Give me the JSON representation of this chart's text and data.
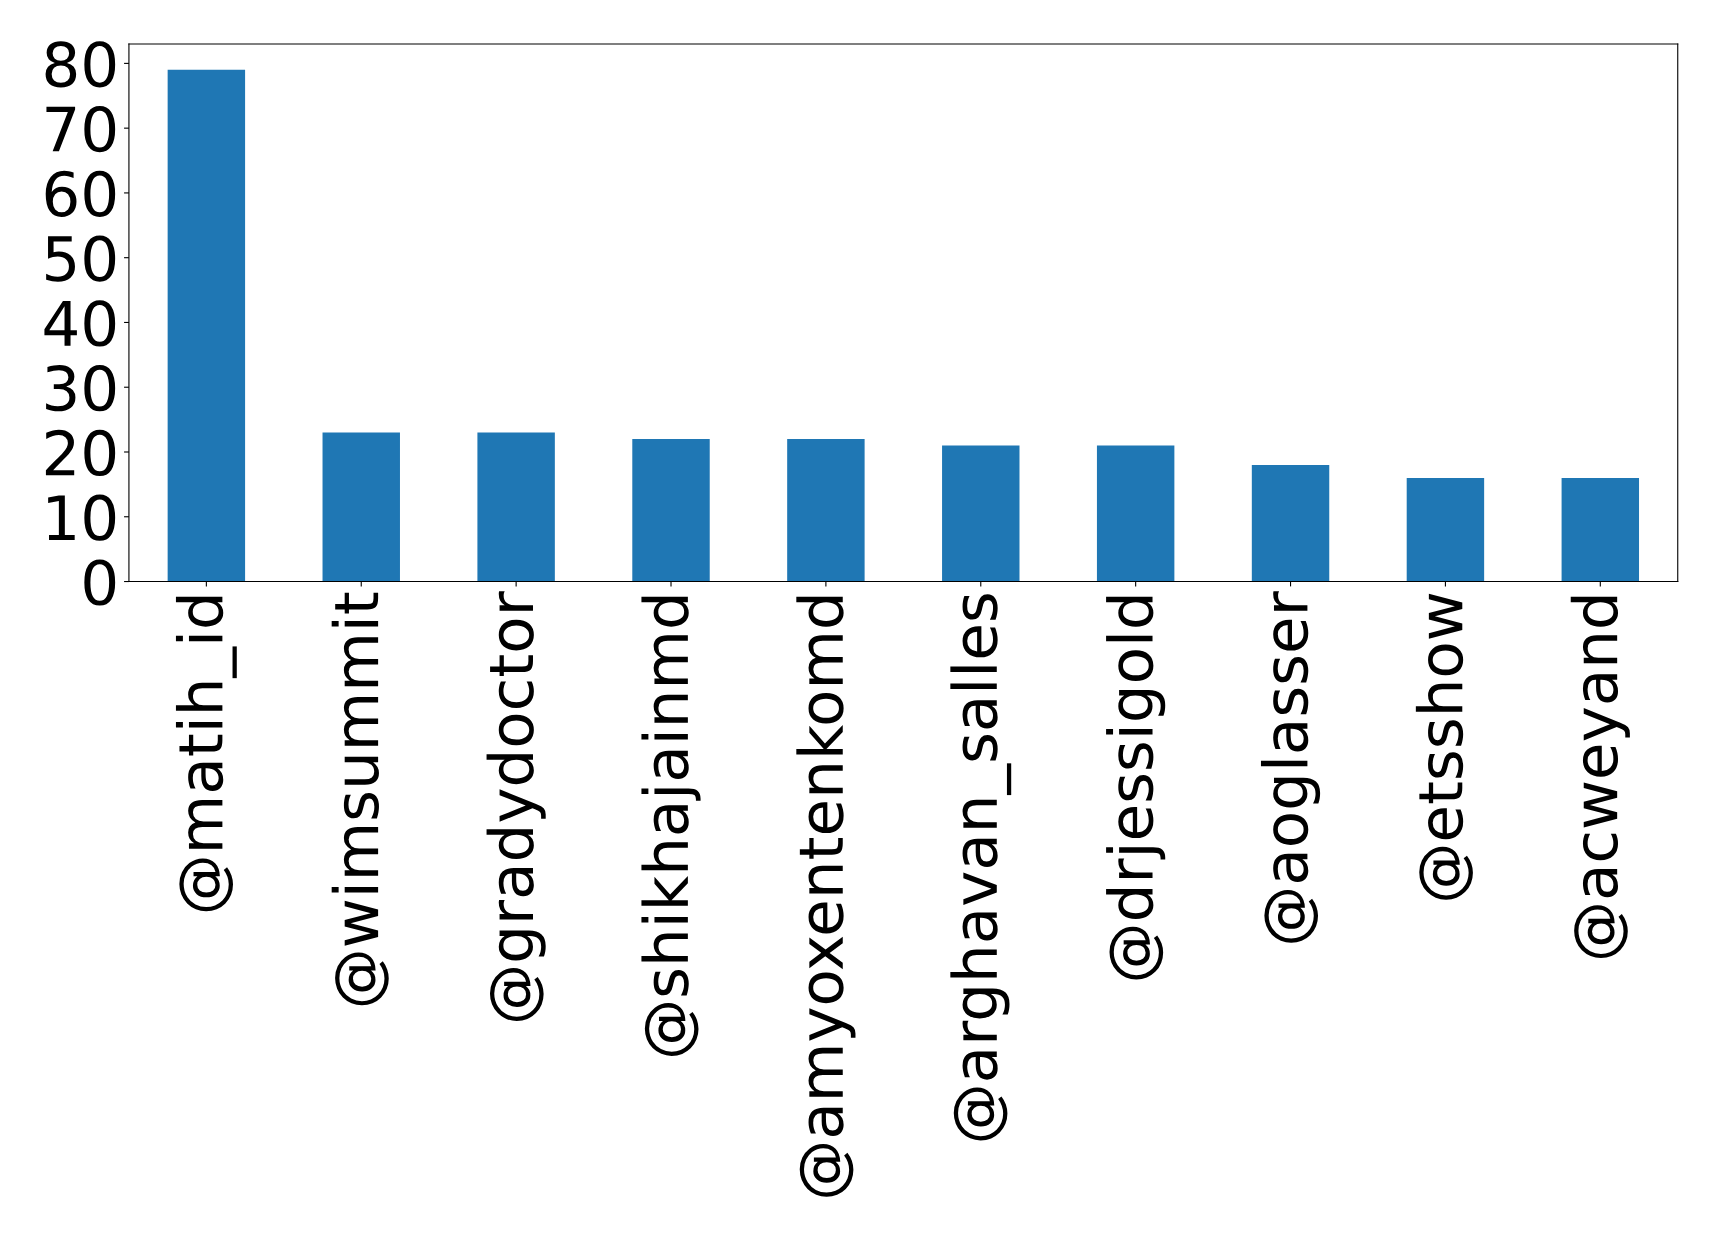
{
  "chart_data": {
    "type": "bar",
    "categories": [
      "@matih_id",
      "@wimsummit",
      "@gradydoctor",
      "@shikhajainmd",
      "@amyoxentenkomd",
      "@arghavan_salles",
      "@drjessigold",
      "@aoglasser",
      "@etsshow",
      "@acweyand"
    ],
    "values": [
      79,
      23,
      23,
      22,
      22,
      21,
      21,
      18,
      16,
      16
    ],
    "color": "#1f77b4",
    "ylim": [
      0,
      83
    ],
    "yticks": [
      0,
      10,
      20,
      30,
      40,
      50,
      60,
      70,
      80
    ],
    "grid": false
  }
}
